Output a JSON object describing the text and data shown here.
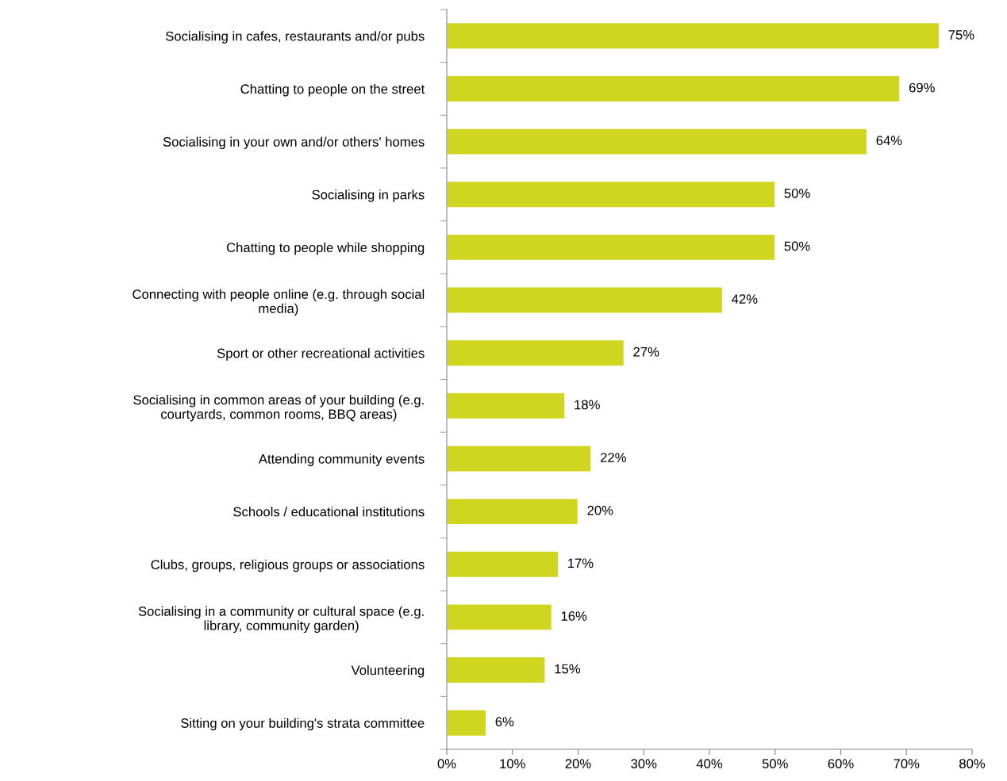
{
  "chart_data": {
    "type": "bar",
    "orientation": "horizontal",
    "categories": [
      "Socialising in cafes, restaurants and/or pubs",
      "Chatting to people on the street",
      "Socialising in your own and/or others' homes",
      "Socialising in parks",
      "Chatting to people while shopping",
      "Connecting with people online (e.g. through social\nmedia)",
      "Sport or other recreational activities",
      "Socialising in common areas of your building (e.g.\ncourtyards, common rooms, BBQ areas)",
      "Attending community events",
      "Schools / educational institutions",
      "Clubs, groups, religious groups or associations",
      "Socialising in a community or cultural space (e.g.\nlibrary, community garden)",
      "Volunteering",
      "Sitting on your building's strata committee"
    ],
    "values": [
      75,
      69,
      64,
      50,
      50,
      42,
      27,
      18,
      22,
      20,
      17,
      16,
      15,
      6
    ],
    "color": "#d0d61f",
    "value_labels": [
      "75%",
      "69%",
      "64%",
      "50%",
      "50%",
      "42%",
      "27%",
      "18%",
      "22%",
      "20%",
      "17%",
      "16%",
      "15%",
      "6%"
    ],
    "xlim": [
      0,
      80
    ],
    "xticks": [
      {
        "value": 0,
        "label": "0%"
      },
      {
        "value": 10,
        "label": "10%"
      },
      {
        "value": 20,
        "label": "20%"
      },
      {
        "value": 30,
        "label": "30%"
      },
      {
        "value": 40,
        "label": "40%"
      },
      {
        "value": 50,
        "label": "50%"
      },
      {
        "value": 60,
        "label": "60%"
      },
      {
        "value": 70,
        "label": "70%"
      },
      {
        "value": 80,
        "label": "80%"
      }
    ],
    "grid": false,
    "legend": false
  }
}
